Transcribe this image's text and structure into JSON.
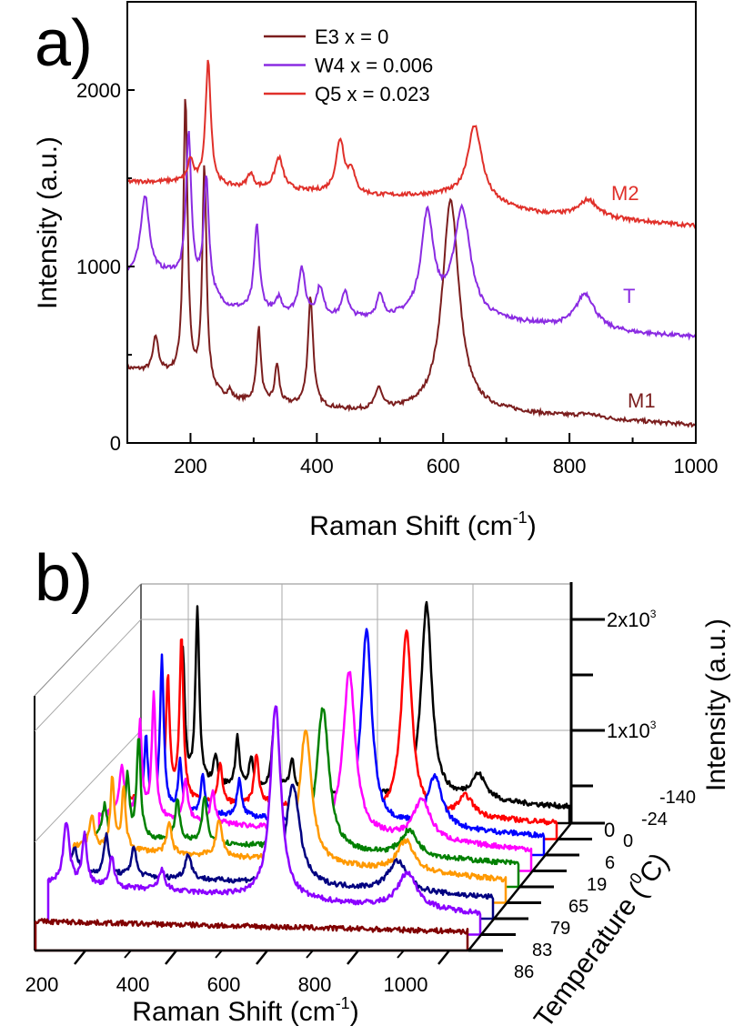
{
  "chart_data": [
    {
      "panel_label": "a)",
      "type": "line",
      "xlabel": "Raman Shift (cm",
      "xlabel_sup": "-1",
      "xlabel_end": ")",
      "ylabel": "Intensity (a.u.)",
      "xlim": [
        100,
        1000
      ],
      "ylim": [
        0,
        2500
      ],
      "xticks": [
        "200",
        "400",
        "600",
        "800",
        "1000"
      ],
      "yticks": [
        "0",
        "1000",
        "2000"
      ],
      "legend_position": "top-center",
      "series": [
        {
          "name": "E3 x = 0",
          "phase_label": "M1",
          "color": "#7b1e1e",
          "baseline": [
            [
              100,
              420
            ],
            [
              170,
              380
            ],
            [
              260,
              240
            ],
            [
              450,
              180
            ],
            [
              700,
              170
            ],
            [
              1000,
              100
            ]
          ],
          "peaks": [
            [
              145,
              200,
              5
            ],
            [
              192,
              1600,
              4
            ],
            [
              222,
              1250,
              4
            ],
            [
              262,
              50,
              4
            ],
            [
              308,
              420,
              4
            ],
            [
              337,
              220,
              4
            ],
            [
              390,
              620,
              5
            ],
            [
              498,
              120,
              6
            ],
            [
              612,
              1200,
              16
            ],
            [
              830,
              20,
              20
            ]
          ]
        },
        {
          "name": "W4 x = 0.006",
          "phase_label": "T",
          "color": "#8a2be2",
          "baseline": [
            [
              100,
              950
            ],
            [
              170,
              950
            ],
            [
              260,
              760
            ],
            [
              450,
              700
            ],
            [
              550,
              700
            ],
            [
              700,
              680
            ],
            [
              900,
              620
            ],
            [
              1000,
              600
            ]
          ],
          "peaks": [
            [
              128,
              450,
              8
            ],
            [
              197,
              850,
              5
            ],
            [
              225,
              650,
              5
            ],
            [
              305,
              480,
              5
            ],
            [
              340,
              80,
              5
            ],
            [
              376,
              260,
              6
            ],
            [
              405,
              160,
              6
            ],
            [
              445,
              150,
              6
            ],
            [
              500,
              120,
              6
            ],
            [
              575,
              580,
              12
            ],
            [
              630,
              620,
              16
            ],
            [
              825,
              200,
              18
            ]
          ]
        },
        {
          "name": "Q5 x = 0.023",
          "phase_label": "M2",
          "color": "#e0302a",
          "baseline": [
            [
              100,
              1480
            ],
            [
              180,
              1480
            ],
            [
              260,
              1450
            ],
            [
              500,
              1400
            ],
            [
              600,
              1400
            ],
            [
              750,
              1300
            ],
            [
              1000,
              1230
            ]
          ],
          "peaks": [
            [
              200,
              130,
              5
            ],
            [
              228,
              700,
              5
            ],
            [
              295,
              80,
              6
            ],
            [
              340,
              180,
              8
            ],
            [
              437,
              300,
              8
            ],
            [
              455,
              120,
              6
            ],
            [
              650,
              430,
              14
            ],
            [
              830,
              100,
              18
            ]
          ]
        }
      ]
    },
    {
      "panel_label": "b)",
      "type": "line",
      "style": "3d-waterfall",
      "xlabel": "Raman Shift (cm",
      "xlabel_sup": "-1",
      "xlabel_end": ")",
      "ylabel": "Intensity (a.u.)",
      "zlabel": "Temperature (",
      "zlabel_sup": "0",
      "zlabel_end": "C)",
      "xlim": [
        90,
        1040
      ],
      "xticks": [
        "200",
        "400",
        "600",
        "800",
        "1000"
      ],
      "yticks": [
        {
          "base": "0",
          "exp": ""
        },
        {
          "base": "1x10",
          "exp": "3"
        },
        {
          "base": "2x10",
          "exp": "3"
        }
      ],
      "series": [
        {
          "temperature": "86",
          "color": "#800000",
          "baseline": [
            180,
            80
          ],
          "peaks": []
        },
        {
          "temperature": "83",
          "color": "#8b00ff",
          "baseline": [
            400,
            100
          ],
          "peaks": [
            [
              130,
              600,
              8
            ],
            [
              170,
              500,
              6
            ],
            [
              230,
              300,
              6
            ],
            [
              340,
              200,
              8
            ],
            [
              590,
              1900,
              14
            ],
            [
              880,
              350,
              25
            ]
          ]
        },
        {
          "temperature": "79",
          "color": "#000080",
          "baseline": [
            350,
            100
          ],
          "peaks": [
            [
              120,
              250,
              8
            ],
            [
              190,
              400,
              6
            ],
            [
              250,
              300,
              6
            ],
            [
              370,
              250,
              8
            ],
            [
              600,
              1000,
              18
            ],
            [
              830,
              300,
              25
            ]
          ]
        },
        {
          "temperature": "65",
          "color": "#ff9900",
          "baseline": [
            450,
            120
          ],
          "peaks": [
            [
              130,
              300,
              6
            ],
            [
              175,
              700,
              5
            ],
            [
              200,
              600,
              5
            ],
            [
              300,
              300,
              6
            ],
            [
              410,
              350,
              8
            ],
            [
              600,
              1300,
              16
            ],
            [
              820,
              300,
              22
            ]
          ]
        },
        {
          "temperature": "19",
          "color": "#008000",
          "baseline": [
            400,
            120
          ],
          "peaks": [
            [
              130,
              300,
              6
            ],
            [
              180,
              600,
              5
            ],
            [
              205,
              1000,
              5
            ],
            [
              290,
              400,
              6
            ],
            [
              350,
              450,
              6
            ],
            [
              610,
              1400,
              16
            ],
            [
              800,
              250,
              22
            ]
          ]
        },
        {
          "temperature": "6",
          "color": "#ff00ff",
          "baseline": [
            450,
            100
          ],
          "peaks": [
            [
              140,
              500,
              6
            ],
            [
              180,
              900,
              5
            ],
            [
              210,
              1200,
              5
            ],
            [
              280,
              400,
              6
            ],
            [
              340,
              300,
              6
            ],
            [
              640,
              1600,
              16
            ],
            [
              800,
              400,
              22
            ]
          ]
        },
        {
          "temperature": "0",
          "color": "#0000ff",
          "baseline": [
            350,
            80
          ],
          "peaks": [
            [
              165,
              700,
              5
            ],
            [
              200,
              1500,
              5
            ],
            [
              240,
              500,
              5
            ],
            [
              290,
              400,
              5
            ],
            [
              370,
              350,
              6
            ],
            [
              650,
              1900,
              14
            ],
            [
              800,
              500,
              20
            ]
          ]
        },
        {
          "temperature": "-24",
          "color": "#ff0000",
          "baseline": [
            300,
            50
          ],
          "peaks": [
            [
              185,
              1200,
              5
            ],
            [
              215,
              1600,
              5
            ],
            [
              300,
              400,
              5
            ],
            [
              380,
              500,
              6
            ],
            [
              420,
              250,
              6
            ],
            [
              710,
              1800,
              14
            ],
            [
              840,
              200,
              20
            ]
          ]
        },
        {
          "temperature": "-140",
          "color": "#000000",
          "baseline": [
            300,
            50
          ],
          "peaks": [
            [
              190,
              1300,
              5
            ],
            [
              222,
              1700,
              5
            ],
            [
              262,
              300,
              5
            ],
            [
              310,
              500,
              5
            ],
            [
              340,
              300,
              5
            ],
            [
              390,
              550,
              6
            ],
            [
              430,
              300,
              6
            ],
            [
              500,
              200,
              6
            ],
            [
              726,
              1900,
              14
            ],
            [
              840,
              250,
              20
            ]
          ]
        }
      ]
    }
  ]
}
